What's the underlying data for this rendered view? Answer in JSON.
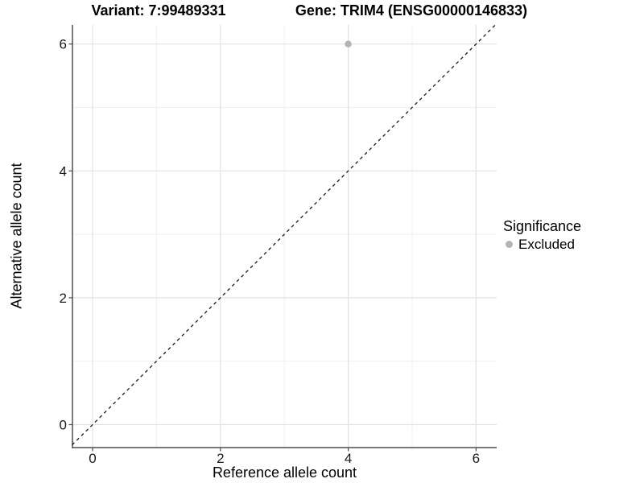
{
  "titles": {
    "left": "Variant: 7:99489331",
    "right": "Gene: TRIM4 (ENSG00000146833)"
  },
  "chart_data": {
    "type": "scatter",
    "title_left": "Variant: 7:99489331",
    "title_right": "Gene: TRIM4 (ENSG00000146833)",
    "xlabel": "Reference allele count",
    "ylabel": "Alternative allele count",
    "xticks": [
      0,
      2,
      4,
      6
    ],
    "yticks": [
      0,
      2,
      4,
      6
    ],
    "minor_gridlines": [
      1,
      3,
      5
    ],
    "xlim": [
      -0.32,
      6.33
    ],
    "ylim": [
      -0.36,
      6.3
    ],
    "grid": "major and minor, light gray on white panel",
    "points": [
      {
        "x": 4,
        "y": 6,
        "significance": "Excluded"
      }
    ],
    "point_color": "#b4b4b4",
    "reference_line": {
      "kind": "identity y=x",
      "style": "dashed",
      "color": "#1a1a1a"
    },
    "legend": {
      "title": "Significance",
      "position": "right",
      "items": [
        {
          "label": "Excluded",
          "color": "#b4b4b4"
        }
      ]
    },
    "colors": {
      "grid_major": "#e2e2e2",
      "grid_minor": "#eeeeee",
      "axis_line": "#4d4d4d",
      "tick_label": "#1a1a1a"
    }
  }
}
